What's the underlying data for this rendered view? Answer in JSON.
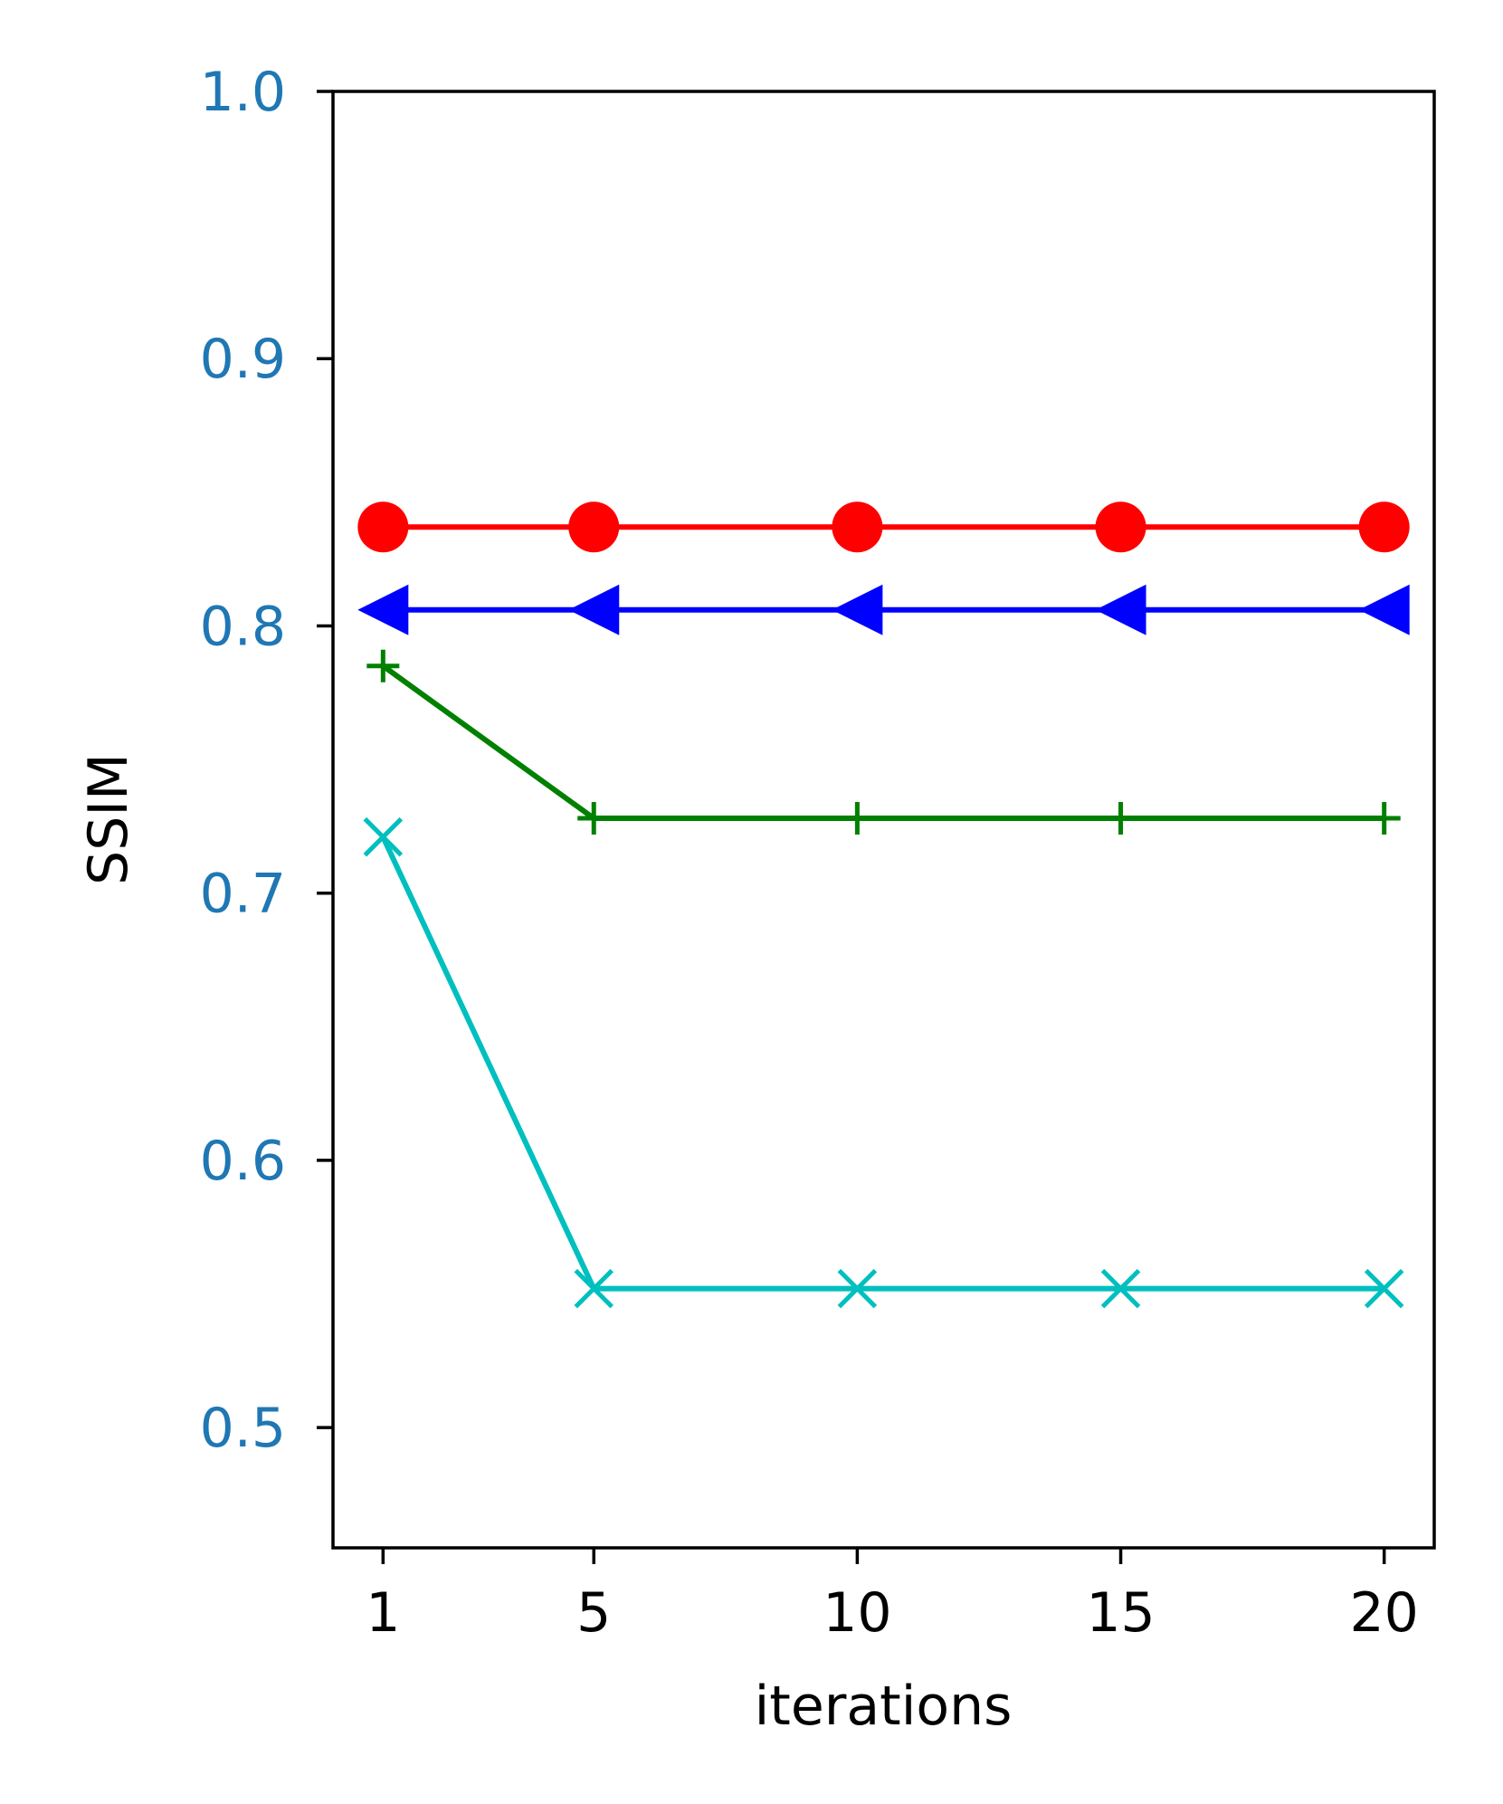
{
  "chart_data": {
    "type": "line",
    "x": [
      1,
      5,
      10,
      15,
      20
    ],
    "x_ticks": [
      "1",
      "5",
      "10",
      "15",
      "20"
    ],
    "xlim": [
      0.05,
      20.95
    ],
    "ylim": [
      0.455,
      1.0
    ],
    "y_ticks": [
      0.5,
      0.6,
      0.7,
      0.8,
      0.9,
      1.0
    ],
    "y_tick_labels": [
      "0.5",
      "0.6",
      "0.7",
      "0.8",
      "0.9",
      "1.0"
    ],
    "xlabel": "iterations",
    "ylabel": "SSIM",
    "title": "",
    "grid": false,
    "y_tick_label_color": "#1f77b4",
    "series": [
      {
        "color": "#ff0000",
        "marker": "circle",
        "values": [
          0.837,
          0.837,
          0.837,
          0.837,
          0.837
        ]
      },
      {
        "color": "#0000ff",
        "marker": "triangle-left",
        "values": [
          0.806,
          0.806,
          0.806,
          0.806,
          0.806
        ]
      },
      {
        "color": "#008000",
        "marker": "plus",
        "values": [
          0.785,
          0.728,
          0.728,
          0.728,
          0.728
        ]
      },
      {
        "color": "#00bfbf",
        "marker": "x",
        "values": [
          0.721,
          0.552,
          0.552,
          0.552,
          0.552
        ]
      }
    ]
  }
}
